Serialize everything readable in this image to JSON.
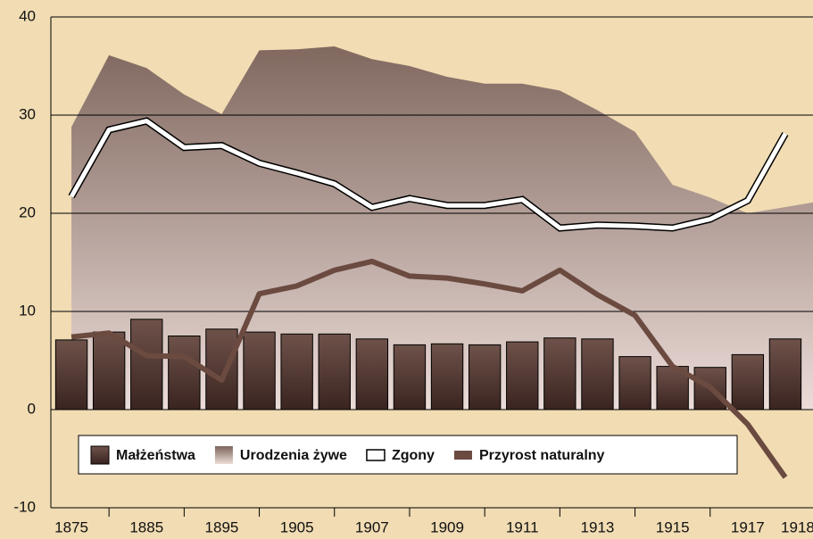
{
  "chart_data": {
    "type": "combo",
    "categories": [
      "1875",
      null,
      "1885",
      null,
      "1895",
      null,
      "1905",
      null,
      "1907",
      null,
      "1909",
      null,
      "1911",
      null,
      "1913",
      null,
      "1915",
      null,
      "1917",
      "1918"
    ],
    "series": [
      {
        "name": "Małżeństwa",
        "type": "bar",
        "color": "#6e524a",
        "values": [
          7.1,
          7.9,
          9.2,
          7.5,
          8.2,
          7.9,
          7.7,
          7.7,
          7.2,
          6.6,
          6.7,
          6.6,
          6.9,
          7.3,
          7.2,
          5.4,
          4.4,
          4.3,
          5.6,
          7.2
        ]
      },
      {
        "name": "Urodzenia żywe",
        "type": "area",
        "color": "#80685f",
        "values": [
          28.8,
          36.1,
          34.8,
          32.1,
          30.1,
          36.6,
          36.7,
          37.0,
          35.7,
          35.0,
          33.9,
          33.2,
          33.2,
          32.5,
          30.5,
          28.3,
          22.9,
          21.6,
          20.0,
          21.1
        ]
      },
      {
        "name": "Zgony",
        "type": "line",
        "color": "#ffffff",
        "values": [
          21.7,
          28.5,
          29.4,
          26.7,
          26.9,
          25.1,
          24.1,
          23.0,
          20.6,
          21.5,
          20.8,
          20.8,
          21.4,
          18.5,
          18.8,
          18.7,
          18.5,
          19.4,
          21.3,
          28.1
        ]
      },
      {
        "name": "Przyrost naturalny",
        "type": "line",
        "color": "#6b4a40",
        "values": [
          7.4,
          7.8,
          5.5,
          5.4,
          3.0,
          11.8,
          12.6,
          14.2,
          15.1,
          13.6,
          13.4,
          12.8,
          12.1,
          14.2,
          11.7,
          9.6,
          4.4,
          2.3,
          -1.5,
          -6.9
        ]
      }
    ],
    "ylim": [
      -10,
      40
    ],
    "yticks": [
      -10,
      0,
      10,
      20,
      30,
      40
    ],
    "grid": true
  }
}
